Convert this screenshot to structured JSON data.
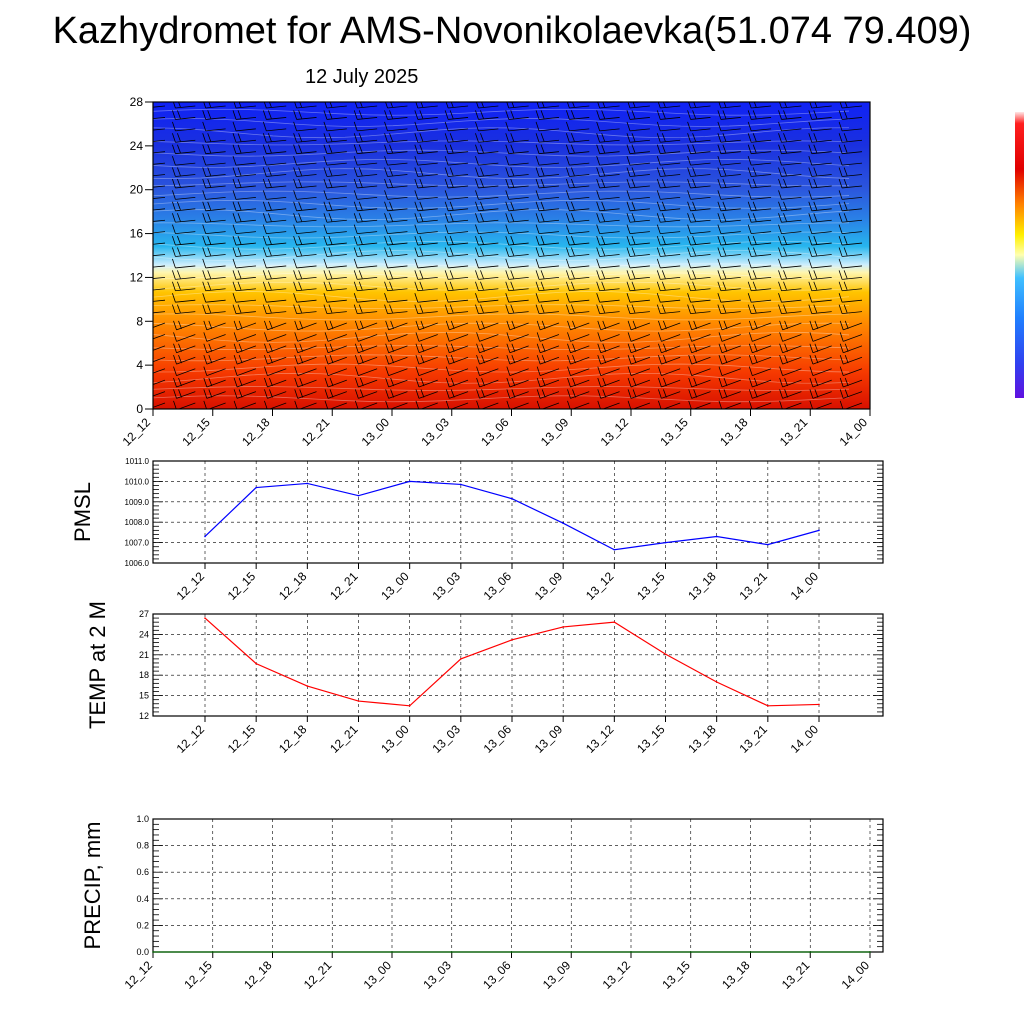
{
  "title": "Kazhydromet for AMS-Novonikolaevka(51.074 79.409)",
  "subtitle": "12 July 2025",
  "colors": {
    "pmsl": "#0000ff",
    "temp": "#ff0000",
    "precip": "#006400"
  },
  "chart_data": [
    {
      "type": "heatmap",
      "title": "",
      "x": [
        "12_12",
        "12_15",
        "12_18",
        "12_21",
        "13_00",
        "13_03",
        "13_06",
        "13_09",
        "13_12",
        "13_15",
        "13_18",
        "13_21",
        "14_00"
      ],
      "yticks": [
        0,
        4,
        8,
        12,
        16,
        20,
        24,
        28
      ],
      "ylim": [
        0,
        28
      ],
      "colorbar": "blue-cyan-yellow-red",
      "overlay": "wind-barbs"
    },
    {
      "type": "line",
      "ylabel": "PMSL",
      "categories": [
        "12_12",
        "12_15",
        "12_18",
        "12_21",
        "13_00",
        "13_03",
        "13_06",
        "13_09",
        "13_12",
        "13_15",
        "13_18",
        "13_21",
        "14_00"
      ],
      "series": [
        {
          "values": [
            1007.3,
            1009.7,
            1009.9,
            1009.3,
            1010.0,
            1009.85,
            1009.15,
            1007.95,
            1006.65,
            1007.0,
            1007.3,
            1006.9,
            1007.6
          ]
        }
      ],
      "ylim": [
        1006.0,
        1011.0
      ],
      "yticks": [
        "1006.0",
        "1007.0",
        "1008.0",
        "1009.0",
        "1010.0",
        "1011.0"
      ],
      "grid": true
    },
    {
      "type": "line",
      "ylabel": "TEMP at 2 M",
      "categories": [
        "12_12",
        "12_15",
        "12_18",
        "12_21",
        "13_00",
        "13_03",
        "13_06",
        "13_09",
        "13_12",
        "13_15",
        "13_18",
        "13_21",
        "14_00"
      ],
      "series": [
        {
          "values": [
            26.4,
            19.7,
            16.4,
            14.2,
            13.5,
            20.4,
            23.2,
            25.1,
            25.8,
            21.1,
            17.0,
            13.5,
            13.7
          ]
        }
      ],
      "ylim": [
        12,
        27
      ],
      "yticks": [
        "12",
        "15",
        "18",
        "21",
        "24",
        "27"
      ],
      "grid": true
    },
    {
      "type": "line",
      "ylabel": "PRECIP, mm",
      "categories": [
        "12_12",
        "12_15",
        "12_18",
        "12_21",
        "13_00",
        "13_03",
        "13_06",
        "13_09",
        "13_12",
        "13_15",
        "13_18",
        "13_21",
        "14_00"
      ],
      "series": [
        {
          "values": [
            0,
            0,
            0,
            0,
            0,
            0,
            0,
            0,
            0,
            0,
            0,
            0,
            0
          ]
        }
      ],
      "ylim": [
        0,
        1.0
      ],
      "yticks": [
        "0.0",
        "0.2",
        "0.4",
        "0.6",
        "0.8",
        "1.0"
      ],
      "grid": true
    }
  ]
}
